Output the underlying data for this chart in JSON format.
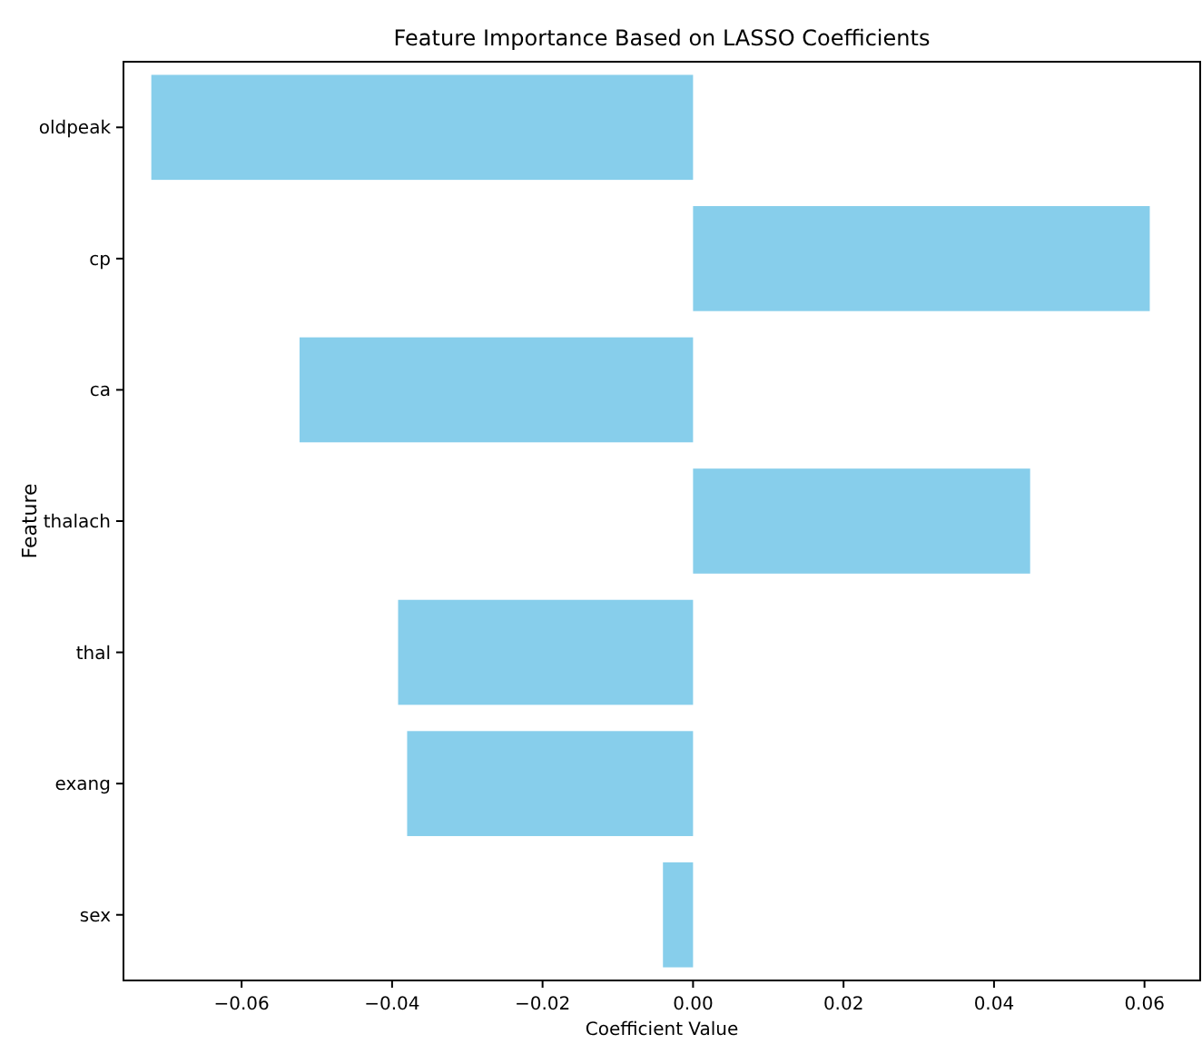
{
  "chart_data": {
    "type": "bar",
    "orientation": "horizontal",
    "title": "Feature Importance Based on LASSO Coefficients",
    "xlabel": "Coefficient Value",
    "ylabel": "Feature",
    "categories": [
      "oldpeak",
      "cp",
      "ca",
      "thalach",
      "thal",
      "exang",
      "sex"
    ],
    "values": [
      -0.072,
      0.0607,
      -0.0523,
      0.0448,
      -0.0392,
      -0.038,
      -0.004
    ],
    "color": "#87ceeb",
    "xlim": [
      -0.0757,
      0.0674
    ],
    "xticks": [
      {
        "value": -0.06,
        "label": "−0.06"
      },
      {
        "value": -0.04,
        "label": "−0.04"
      },
      {
        "value": -0.02,
        "label": "−0.02"
      },
      {
        "value": 0,
        "label": "0.00"
      },
      {
        "value": 0.02,
        "label": "0.02"
      },
      {
        "value": 0.04,
        "label": "0.04"
      },
      {
        "value": 0.06,
        "label": "0.06"
      }
    ],
    "grid": false
  }
}
